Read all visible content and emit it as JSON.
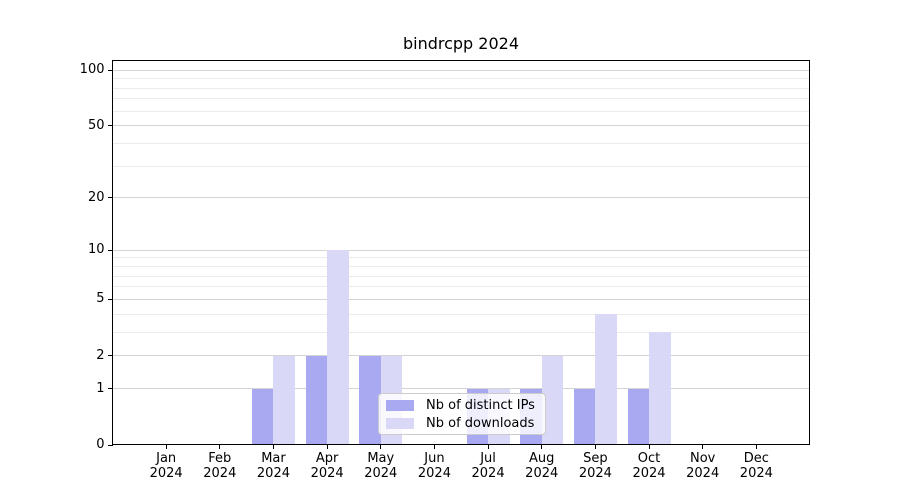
{
  "title": "bindrcpp 2024",
  "colors": {
    "distinct_ips": "#a9a9f2",
    "downloads": "#d9d9f7",
    "grid_major": "#d4d4d4",
    "grid_minor": "#ebebeb",
    "spine": "#000000",
    "legend_border": "#cccccc"
  },
  "legend": {
    "items": [
      {
        "label": "Nb of distinct IPs",
        "series": "distinct_ips"
      },
      {
        "label": "Nb of downloads",
        "series": "downloads"
      }
    ]
  },
  "chart_data": {
    "type": "bar",
    "title": "bindrcpp 2024",
    "categories": [
      "Jan",
      "Feb",
      "Mar",
      "Apr",
      "May",
      "Jun",
      "Jul",
      "Aug",
      "Sep",
      "Oct",
      "Nov",
      "Dec"
    ],
    "year_label": "2024",
    "series": [
      {
        "name": "Nb of distinct IPs",
        "color": "#a9a9f2",
        "values": [
          0,
          0,
          1,
          2,
          2,
          0,
          1,
          1,
          1,
          1,
          0,
          0
        ]
      },
      {
        "name": "Nb of downloads",
        "color": "#d9d9f7",
        "values": [
          0,
          0,
          2,
          10,
          2,
          0,
          1,
          2,
          4,
          3,
          0,
          0
        ]
      }
    ],
    "xlabel": "",
    "ylabel": "",
    "y_axis": {
      "scale": "log1p",
      "ticks": [
        0,
        1,
        2,
        5,
        10,
        20,
        50,
        100
      ],
      "minor_ticks": [
        3,
        4,
        6,
        7,
        8,
        9,
        30,
        40,
        60,
        70,
        80,
        90
      ],
      "ylim": [
        0,
        113
      ]
    },
    "grid": true,
    "legend_position": "lower center"
  }
}
